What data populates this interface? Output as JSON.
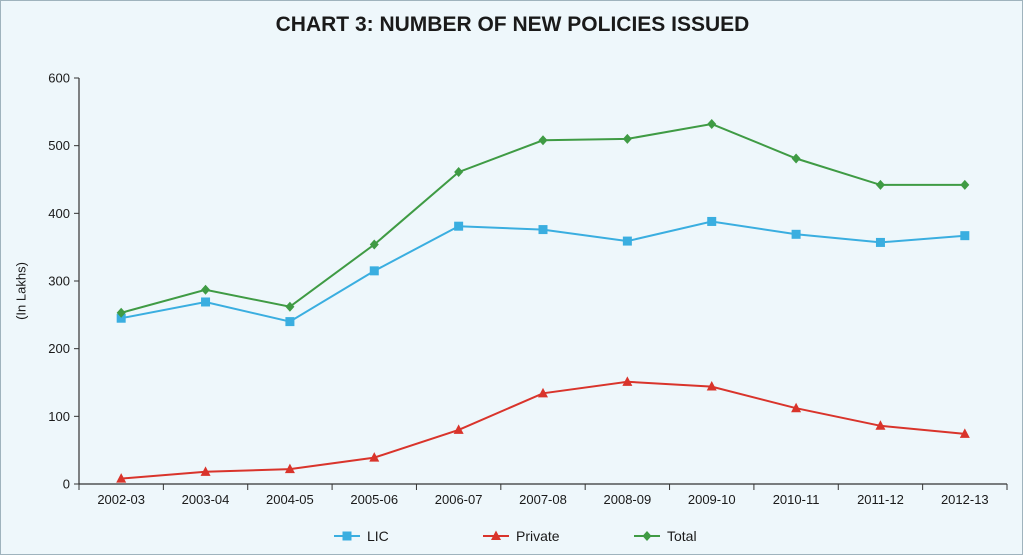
{
  "chart_data": {
    "type": "line",
    "title": "CHART 3: NUMBER OF NEW POLICIES ISSUED",
    "xlabel": "",
    "ylabel": "(In Lakhs)",
    "ylim": [
      0,
      600
    ],
    "yticks": [
      0,
      100,
      200,
      300,
      400,
      500,
      600
    ],
    "grid": false,
    "legend_position": "bottom",
    "categories": [
      "2002-03",
      "2003-04",
      "2004-05",
      "2005-06",
      "2006-07",
      "2007-08",
      "2008-09",
      "2009-10",
      "2010-11",
      "2011-12",
      "2012-13"
    ],
    "series": [
      {
        "name": "LIC",
        "color": "#3aaee0",
        "marker": "square",
        "values": [
          245,
          269,
          240,
          315,
          381,
          376,
          359,
          388,
          369,
          357,
          367
        ]
      },
      {
        "name": "Private",
        "color": "#d9342b",
        "marker": "triangle",
        "values": [
          8,
          18,
          22,
          39,
          80,
          134,
          151,
          144,
          112,
          86,
          74
        ]
      },
      {
        "name": "Total",
        "color": "#3f9b44",
        "marker": "diamond",
        "values": [
          253,
          287,
          262,
          354,
          461,
          508,
          510,
          532,
          481,
          442,
          442
        ]
      }
    ]
  }
}
